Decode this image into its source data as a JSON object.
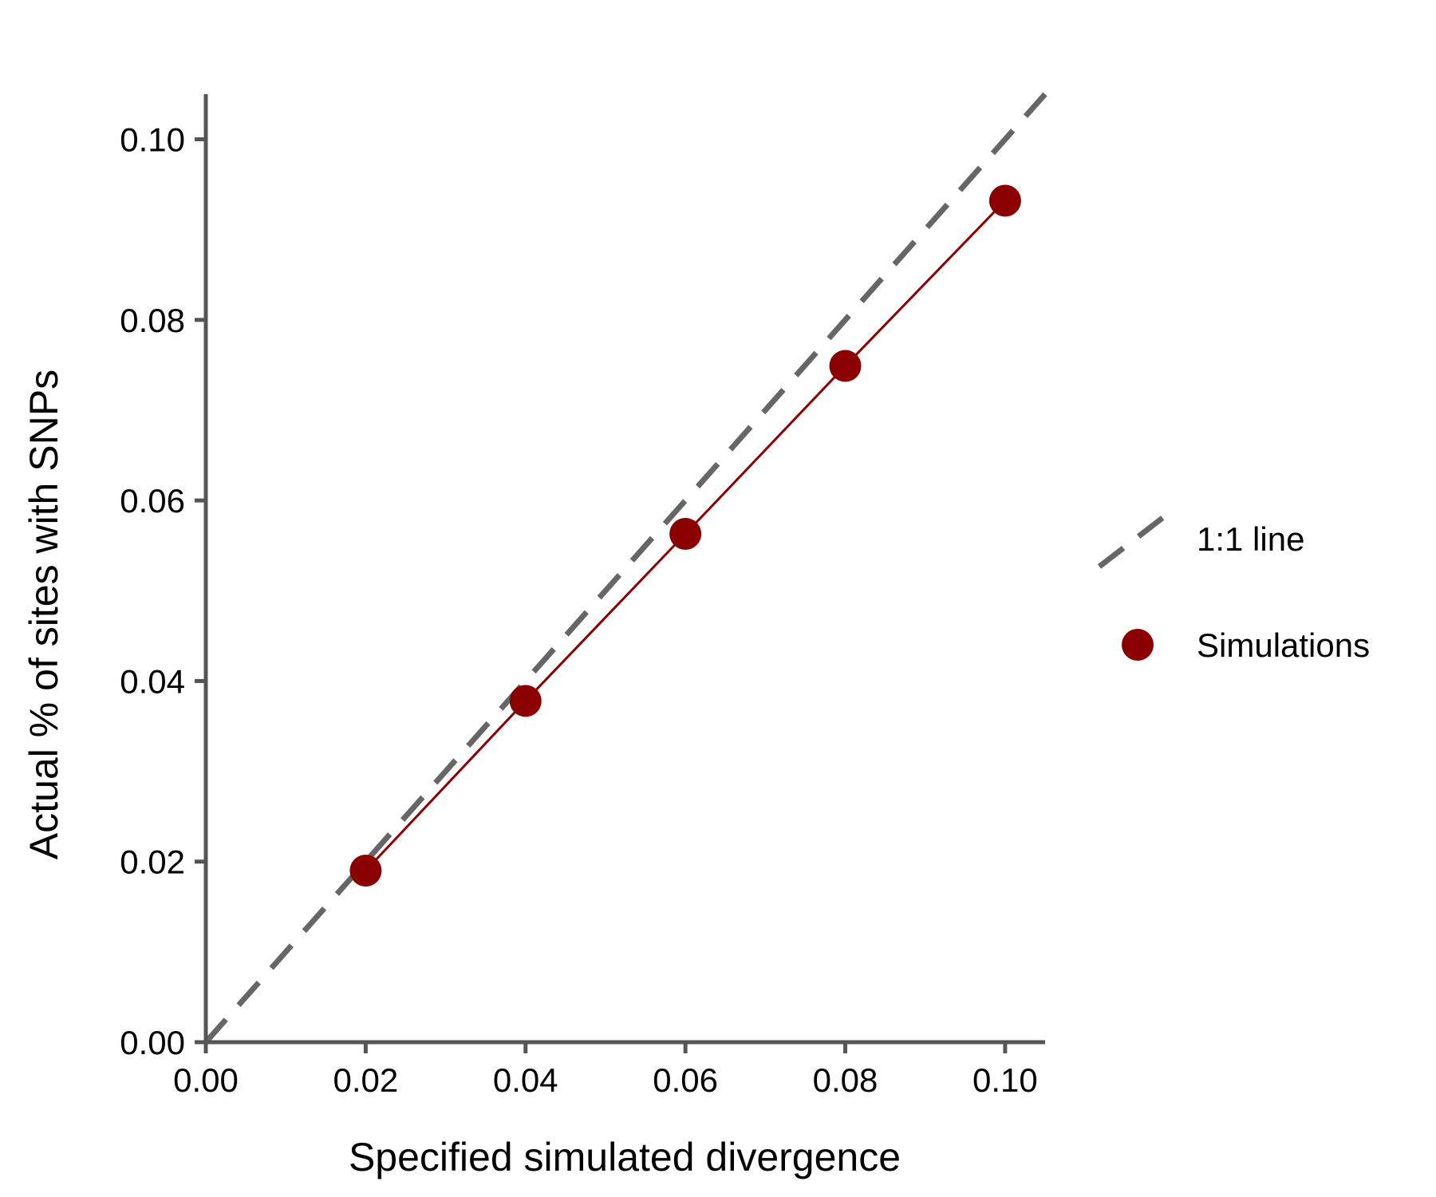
{
  "chart_data": {
    "type": "line",
    "xlabel": "Specified simulated divergence",
    "ylabel": "Actual % of sites with SNPs",
    "xlim": [
      0,
      0.105
    ],
    "ylim": [
      0,
      0.105
    ],
    "x_ticks": [
      "0.00",
      "0.02",
      "0.04",
      "0.06",
      "0.08",
      "0.10"
    ],
    "y_ticks": [
      "0.00",
      "0.02",
      "0.04",
      "0.06",
      "0.08",
      "0.10"
    ],
    "grid": false,
    "legend_position": "right",
    "series": [
      {
        "name": "Simulations",
        "kind": "line+points",
        "color": "#8b0000",
        "x": [
          0.02,
          0.04,
          0.06,
          0.08,
          0.1
        ],
        "y": [
          0.019,
          0.0378,
          0.0563,
          0.0749,
          0.0932
        ]
      },
      {
        "name": "1:1 line",
        "kind": "dashed-line",
        "color": "#666666",
        "x": [
          0,
          0.105
        ],
        "y": [
          0,
          0.105
        ]
      }
    ]
  }
}
